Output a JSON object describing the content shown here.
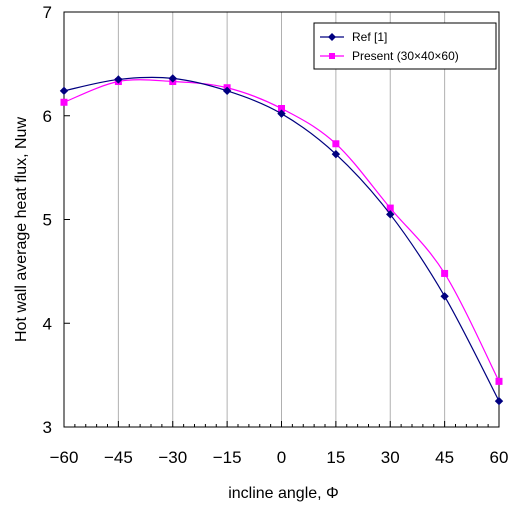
{
  "chart_data": {
    "type": "line",
    "xlabel": "incline angle, Φ",
    "ylabel": "Hot wall average heat flux, Nuw",
    "xlim": [
      -60,
      60
    ],
    "ylim": [
      3,
      7
    ],
    "x_ticks": [
      -60,
      -45,
      -30,
      -15,
      0,
      15,
      30,
      45,
      60
    ],
    "x_tick_labels": [
      "−60",
      "−45",
      "−30",
      "−15",
      "0",
      "15",
      "30",
      "45",
      "60"
    ],
    "x_minor_step": 3,
    "y_ticks": [
      3,
      4,
      5,
      6,
      7
    ],
    "y_tick_labels": [
      "3",
      "4",
      "5",
      "6",
      "7"
    ],
    "grid": "vertical-major",
    "legend_position": "top-right",
    "series": [
      {
        "name": "Ref [1]",
        "color": "#000080",
        "marker": "diamond",
        "x": [
          -60,
          -45,
          -30,
          -15,
          0,
          15,
          30,
          45,
          60
        ],
        "y": [
          6.24,
          6.35,
          6.36,
          6.24,
          6.02,
          5.63,
          5.05,
          4.26,
          3.25
        ]
      },
      {
        "name": "Present (30×40×60)",
        "color": "#ff00ff",
        "marker": "square",
        "x": [
          -60,
          -45,
          -30,
          -15,
          0,
          15,
          30,
          45,
          60
        ],
        "y": [
          6.13,
          6.33,
          6.33,
          6.27,
          6.07,
          5.73,
          5.11,
          4.48,
          3.44
        ]
      }
    ]
  }
}
